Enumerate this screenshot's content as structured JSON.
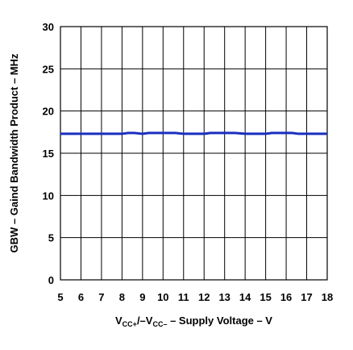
{
  "chart_data": {
    "type": "line",
    "xlabel": {
      "v": "V",
      "cc_plus": "CC+",
      "sep": "/–V",
      "cc_minus": "CC–",
      "rest": " – Supply Voltage – V"
    },
    "ylabel": "GBW – Gaind Bandwidth Product – MHz",
    "xlim": [
      5,
      18
    ],
    "ylim": [
      0,
      30
    ],
    "x_ticks": [
      "5",
      "6",
      "7",
      "8",
      "9",
      "10",
      "11",
      "12",
      "13",
      "14",
      "15",
      "16",
      "17",
      "18"
    ],
    "y_ticks": [
      "0",
      "5",
      "10",
      "15",
      "20",
      "25",
      "30"
    ],
    "grid": true,
    "series": [
      {
        "color": "#1a2fbf",
        "x": [
          5,
          6,
          7,
          8,
          8.3,
          8.6,
          9,
          9.3,
          9.6,
          10,
          10.6,
          11,
          11.5,
          12,
          12.3,
          12.6,
          13,
          13.5,
          14,
          14.5,
          15,
          15.3,
          15.6,
          16,
          16.3,
          16.6,
          17,
          17.5,
          18
        ],
        "y": [
          17.3,
          17.3,
          17.3,
          17.3,
          17.4,
          17.4,
          17.3,
          17.4,
          17.4,
          17.4,
          17.4,
          17.3,
          17.3,
          17.3,
          17.4,
          17.4,
          17.4,
          17.4,
          17.3,
          17.3,
          17.3,
          17.4,
          17.4,
          17.4,
          17.4,
          17.3,
          17.3,
          17.3,
          17.3
        ]
      }
    ]
  }
}
